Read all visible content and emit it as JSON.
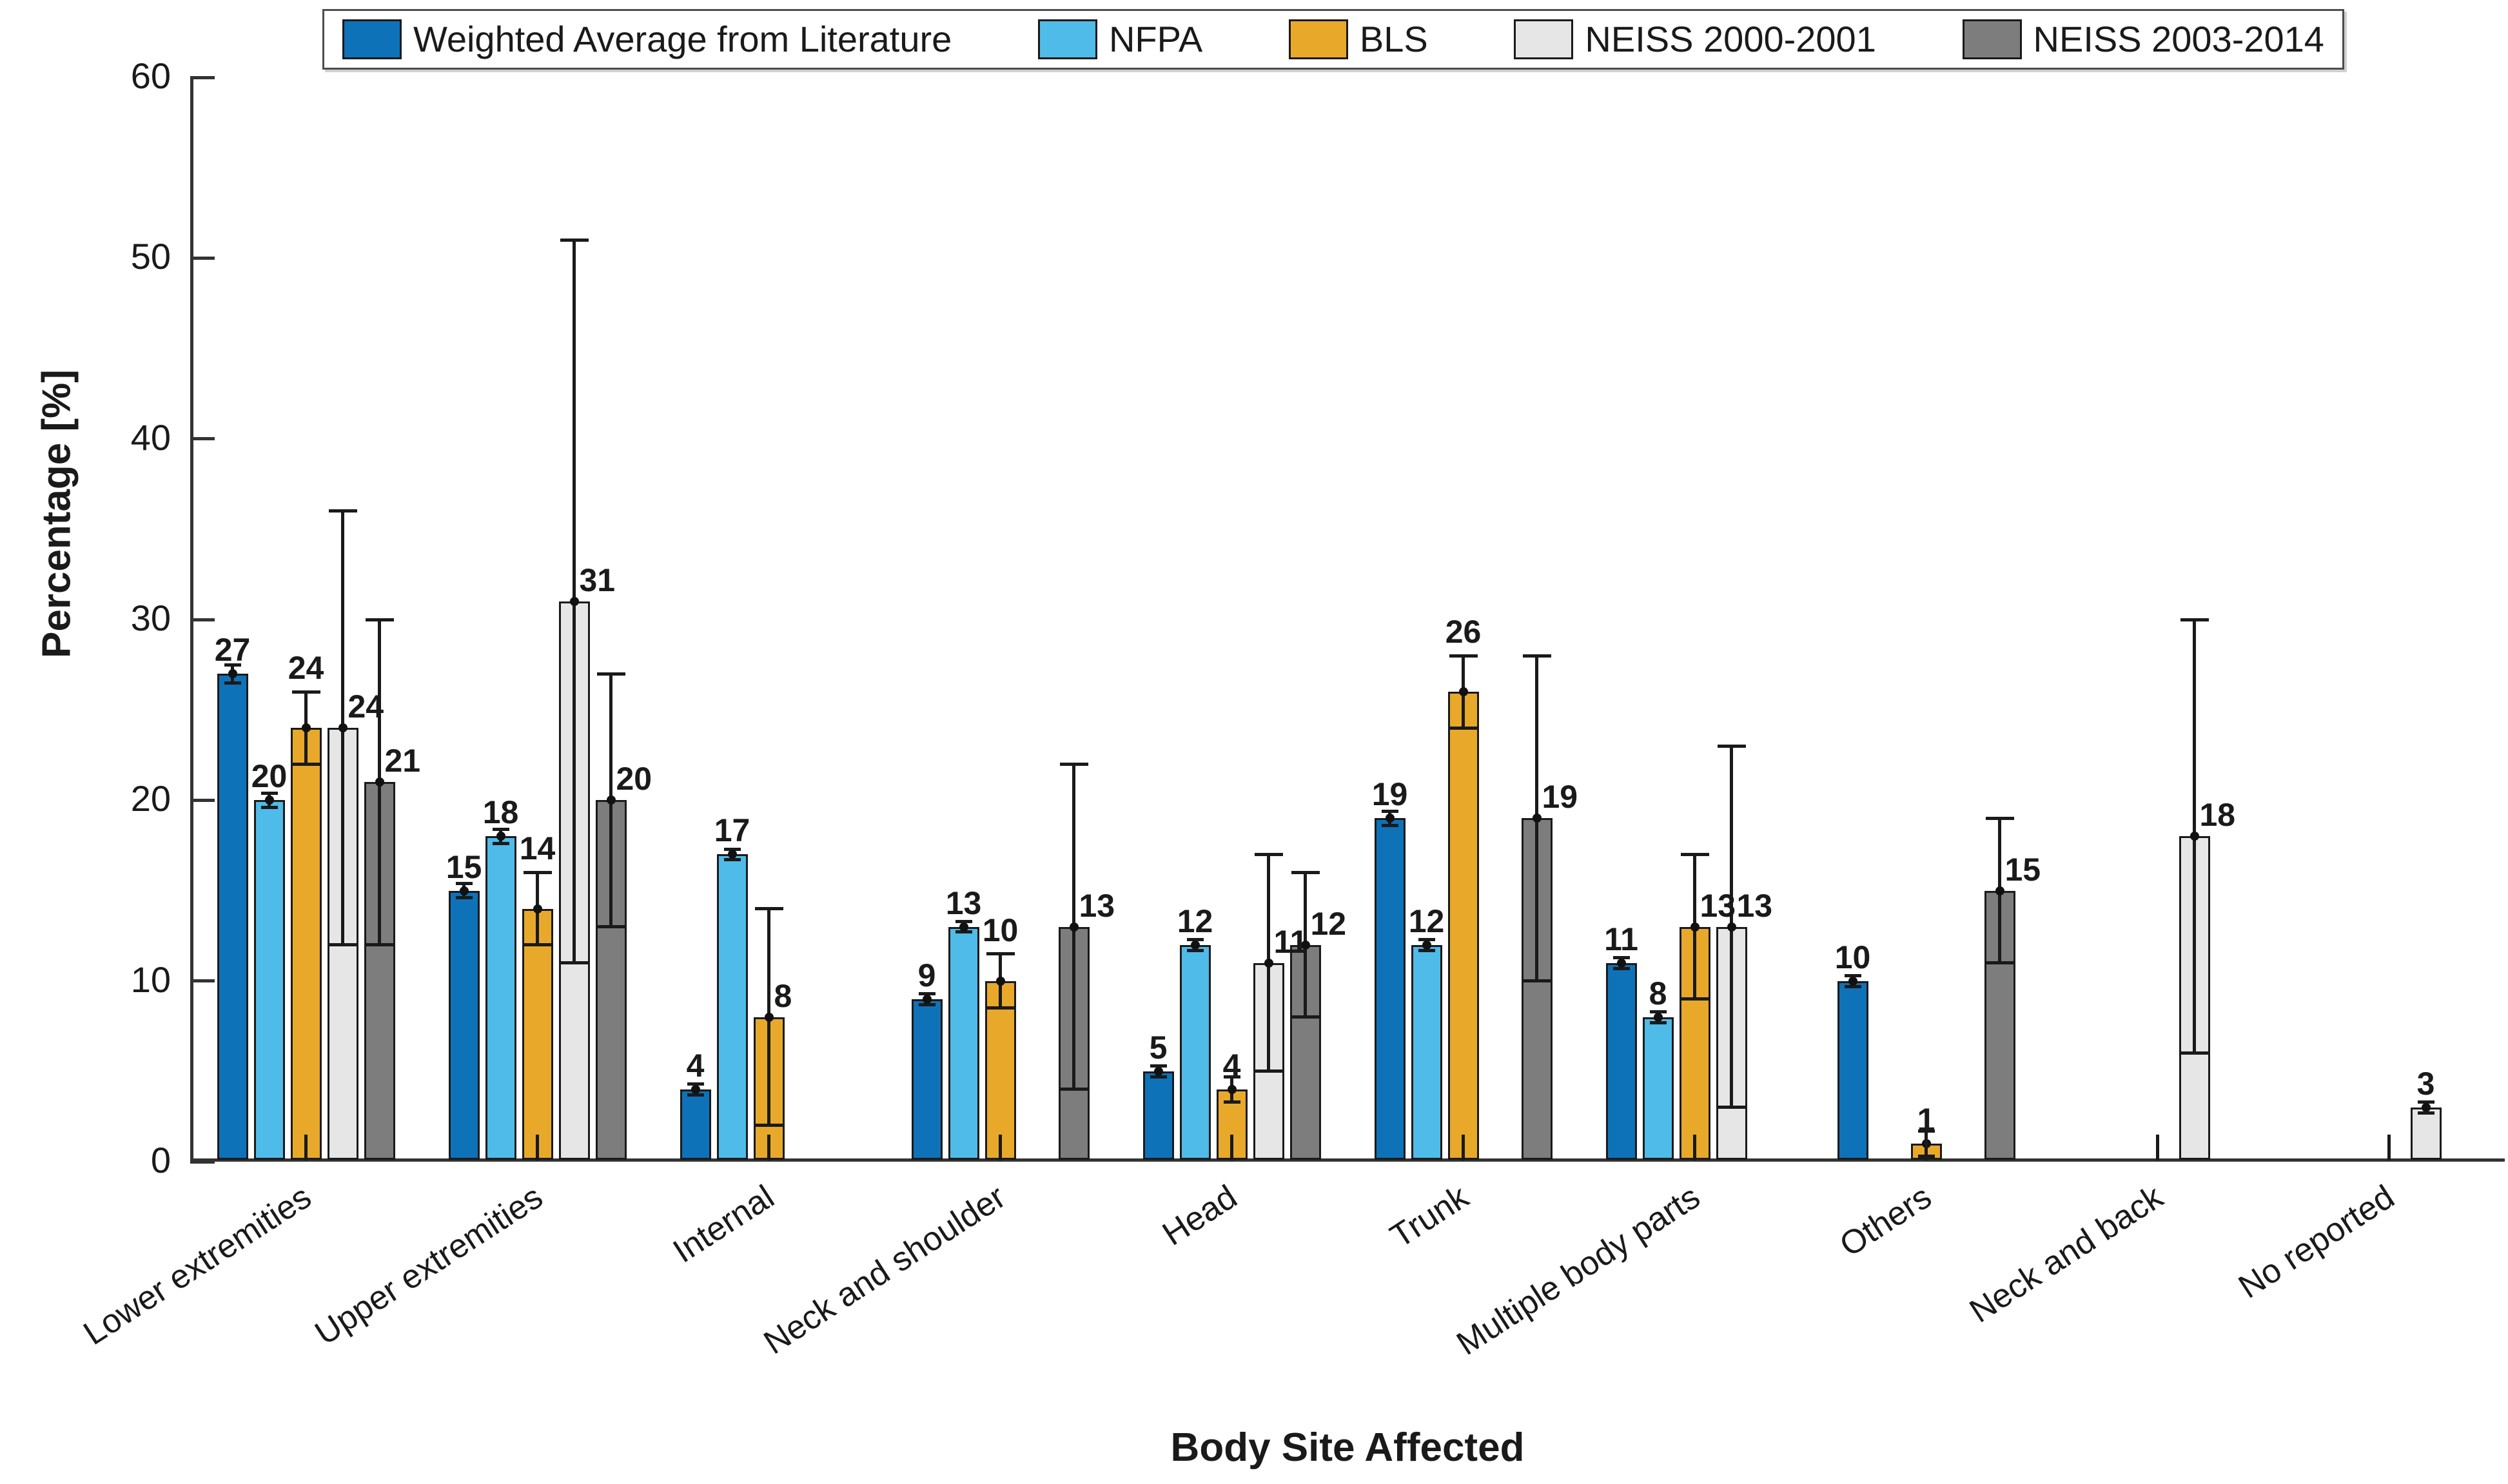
{
  "axes": {
    "ylabel": "Percentage [%]",
    "xlabel": "Body Site Affected",
    "yticks": [
      0,
      10,
      20,
      30,
      40,
      50,
      60
    ],
    "ylim": [
      0,
      60
    ],
    "grid": false,
    "legend_position": "top-horizontal"
  },
  "chart_data": {
    "type": "bar",
    "title": "",
    "xlabel": "Body Site Affected",
    "ylabel": "Percentage [%]",
    "ylim": [
      0,
      60
    ],
    "yticks": [
      0,
      10,
      20,
      30,
      40,
      50,
      60
    ],
    "categories": [
      "Lower extremities",
      "Upper extremities",
      "Internal",
      "Neck and shoulder",
      "Head",
      "Trunk",
      "Multiple body parts",
      "Others",
      "Neck and back",
      "No reported"
    ],
    "series": [
      {
        "name": "Weighted Average from Literature",
        "color": "#0E72B8",
        "values": [
          27,
          15,
          4,
          9,
          5,
          19,
          11,
          10,
          null,
          null
        ],
        "errors": [
          0.5,
          0.4,
          0.3,
          0.3,
          0.3,
          0.4,
          0.3,
          0.3,
          null,
          null
        ]
      },
      {
        "name": "NFPA",
        "color": "#4FBBE8",
        "values": [
          20,
          18,
          17,
          13,
          12,
          12,
          8,
          null,
          null,
          null
        ],
        "errors": [
          0.4,
          0.4,
          0.3,
          0.3,
          0.3,
          0.3,
          0.3,
          null,
          null,
          null
        ]
      },
      {
        "name": "BLS",
        "color": "#E8A92B",
        "values": [
          24,
          14,
          8,
          10,
          4,
          26,
          13,
          1,
          null,
          null
        ],
        "errors": [
          2,
          2,
          6,
          1.5,
          0.7,
          2,
          4,
          0.7,
          null,
          null
        ]
      },
      {
        "name": "NEISS 2000-2001",
        "color": "#E6E6E6",
        "values": [
          24,
          31,
          null,
          null,
          11,
          null,
          13,
          null,
          18,
          3
        ],
        "errors": [
          12,
          20,
          null,
          null,
          6,
          null,
          10,
          null,
          12,
          0.3
        ]
      },
      {
        "name": "NEISS 2003-2014",
        "color": "#7D7D7D",
        "values": [
          21,
          20,
          null,
          13,
          12,
          19,
          null,
          15,
          null,
          null
        ],
        "errors": [
          9,
          7,
          null,
          9,
          4,
          9,
          null,
          4,
          null,
          null
        ]
      }
    ]
  }
}
